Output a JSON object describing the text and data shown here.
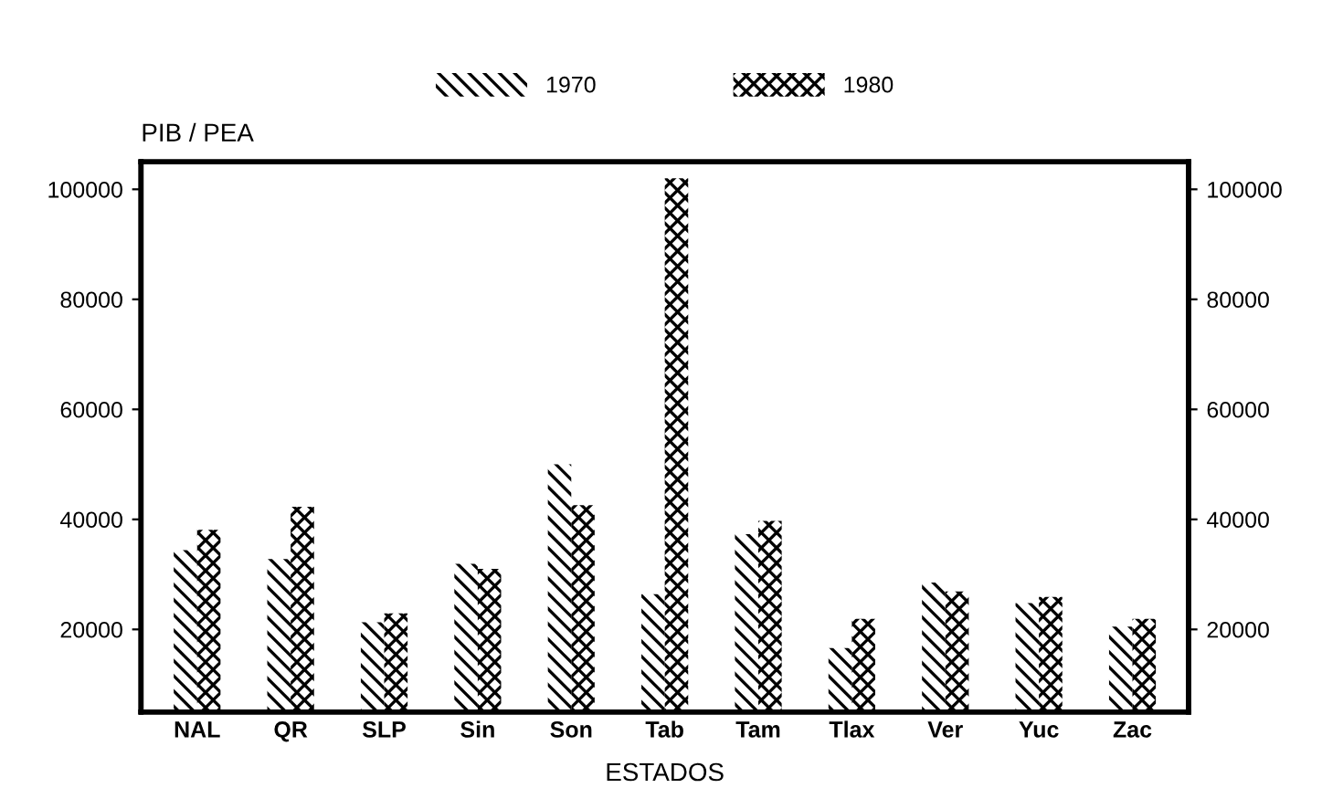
{
  "chart_data": {
    "type": "bar",
    "ylabel": "PIB / PEA",
    "xlabel": "ESTADOS",
    "categories": [
      "NAL",
      "QR",
      "SLP",
      "Sin",
      "Son",
      "Tab",
      "Tam",
      "Tlax",
      "Ver",
      "Yuc",
      "Zac"
    ],
    "series": [
      {
        "name": "1970",
        "color": "#000000",
        "values": [
          34400,
          32800,
          21300,
          31900,
          50000,
          26400,
          37300,
          16600,
          28500,
          24800,
          20500
        ]
      },
      {
        "name": "1980",
        "color": "#000000",
        "values": [
          38100,
          42300,
          22900,
          31000,
          42600,
          102000,
          39700,
          21900,
          26900,
          25900,
          21900
        ]
      }
    ],
    "ylim": [
      5000,
      105000
    ],
    "yticks": [
      20000,
      40000,
      60000,
      80000,
      100000
    ],
    "y2lim": [
      5000,
      105000
    ],
    "y2ticks": [
      20000,
      40000,
      60000,
      80000,
      100000
    ],
    "grid": false,
    "legend": "top"
  }
}
